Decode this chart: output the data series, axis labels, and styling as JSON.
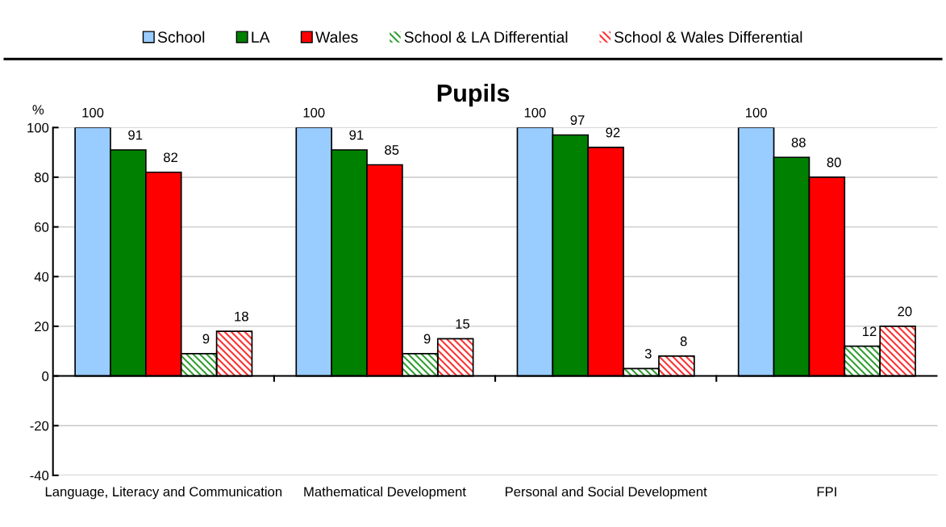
{
  "chart_data": {
    "type": "bar",
    "title": "Pupils",
    "ylabel": "%",
    "categories": [
      "Language, Literacy and Communication",
      "Mathematical Development",
      "Personal and Social Development",
      "FPI"
    ],
    "series": [
      {
        "name": "School",
        "color": "#99ccff",
        "values": [
          100,
          100,
          100,
          100
        ]
      },
      {
        "name": "LA",
        "color": "#008000",
        "values": [
          91,
          91,
          97,
          88
        ]
      },
      {
        "name": "Wales",
        "color": "#ff0000",
        "values": [
          82,
          85,
          92,
          80
        ]
      },
      {
        "name": "School & LA Differential",
        "color": "#33a033",
        "values": [
          9,
          9,
          3,
          12
        ]
      },
      {
        "name": "School & Wales Differential",
        "color": "#ff3333",
        "values": [
          18,
          15,
          8,
          20
        ]
      }
    ],
    "ylim": [
      -40,
      100
    ],
    "yticks": [
      -40,
      -20,
      0,
      20,
      40,
      60,
      80,
      100
    ],
    "grid": "y",
    "legend": "top",
    "data_labels": true
  }
}
